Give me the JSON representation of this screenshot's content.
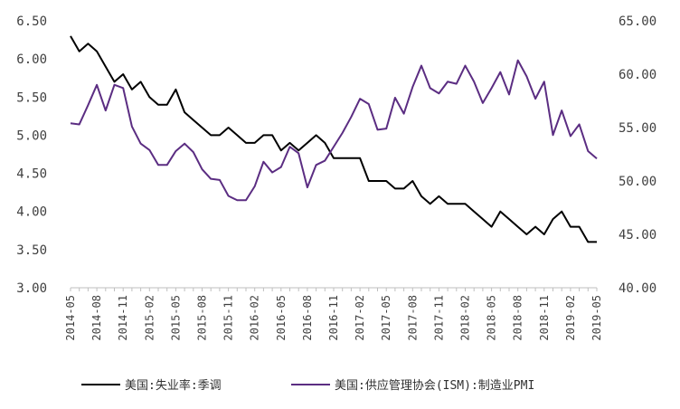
{
  "chart_data": {
    "type": "line",
    "x": [
      "2014-05",
      "2014-06",
      "2014-07",
      "2014-08",
      "2014-09",
      "2014-10",
      "2014-11",
      "2014-12",
      "2015-01",
      "2015-02",
      "2015-03",
      "2015-04",
      "2015-05",
      "2015-06",
      "2015-07",
      "2015-08",
      "2015-09",
      "2015-10",
      "2015-11",
      "2015-12",
      "2016-01",
      "2016-02",
      "2016-03",
      "2016-04",
      "2016-05",
      "2016-06",
      "2016-07",
      "2016-08",
      "2016-09",
      "2016-10",
      "2016-11",
      "2016-12",
      "2017-01",
      "2017-02",
      "2017-03",
      "2017-04",
      "2017-05",
      "2017-06",
      "2017-07",
      "2017-08",
      "2017-09",
      "2017-10",
      "2017-11",
      "2017-12",
      "2018-01",
      "2018-02",
      "2018-03",
      "2018-04",
      "2018-05",
      "2018-06",
      "2018-07",
      "2018-08",
      "2018-09",
      "2018-10",
      "2018-11",
      "2018-12",
      "2019-01",
      "2019-02",
      "2019-03",
      "2019-04",
      "2019-05"
    ],
    "x_tick_labels": [
      "2014-05",
      "2014-08",
      "2014-11",
      "2015-02",
      "2015-05",
      "2015-08",
      "2015-11",
      "2016-02",
      "2016-05",
      "2016-08",
      "2016-11",
      "2017-02",
      "2017-05",
      "2017-08",
      "2017-11",
      "2018-02",
      "2018-05",
      "2018-08",
      "2018-11",
      "2019-02",
      "2019-05"
    ],
    "series": [
      {
        "name": "美国:失业率:季调",
        "axis": "left",
        "color": "#000000",
        "values": [
          6.3,
          6.1,
          6.2,
          6.1,
          5.9,
          5.7,
          5.8,
          5.6,
          5.7,
          5.5,
          5.4,
          5.4,
          5.6,
          5.3,
          5.2,
          5.1,
          5.0,
          5.0,
          5.1,
          5.0,
          4.9,
          4.9,
          5.0,
          5.0,
          4.8,
          4.9,
          4.8,
          4.9,
          5.0,
          4.9,
          4.7,
          4.7,
          4.7,
          4.7,
          4.4,
          4.4,
          4.4,
          4.3,
          4.3,
          4.4,
          4.2,
          4.1,
          4.2,
          4.1,
          4.1,
          4.1,
          4.0,
          3.9,
          3.8,
          4.0,
          3.9,
          3.8,
          3.7,
          3.8,
          3.7,
          3.9,
          4.0,
          3.8,
          3.8,
          3.6,
          3.6
        ]
      },
      {
        "name": "美国:供应管理协会(ISM):制造业PMI",
        "axis": "right",
        "color": "#5b2d82",
        "values": [
          55.4,
          55.3,
          57.1,
          59.0,
          56.6,
          59.0,
          58.7,
          55.1,
          53.5,
          52.9,
          51.5,
          51.5,
          52.8,
          53.5,
          52.7,
          51.1,
          50.2,
          50.1,
          48.6,
          48.2,
          48.2,
          49.5,
          51.8,
          50.8,
          51.3,
          53.2,
          52.6,
          49.4,
          51.5,
          51.9,
          53.2,
          54.5,
          56.0,
          57.7,
          57.2,
          54.8,
          54.9,
          57.8,
          56.3,
          58.8,
          60.8,
          58.7,
          58.2,
          59.3,
          59.1,
          60.8,
          59.3,
          57.3,
          58.7,
          60.2,
          58.1,
          61.3,
          59.8,
          57.7,
          59.3,
          54.3,
          56.6,
          54.2,
          55.3,
          52.8,
          52.1
        ]
      }
    ],
    "left_axis": {
      "min": 3.0,
      "max": 6.5,
      "step": 0.5,
      "tick_labels": [
        "3.00",
        "3.50",
        "4.00",
        "4.50",
        "5.00",
        "5.50",
        "6.00",
        "6.50"
      ]
    },
    "right_axis": {
      "min": 40,
      "max": 65,
      "step": 5,
      "tick_labels": [
        "40.00",
        "45.00",
        "50.00",
        "55.00",
        "60.00",
        "65.00"
      ]
    },
    "grid": false,
    "legend_position": "bottom",
    "title": "",
    "xlabel": "",
    "ylabel": ""
  }
}
